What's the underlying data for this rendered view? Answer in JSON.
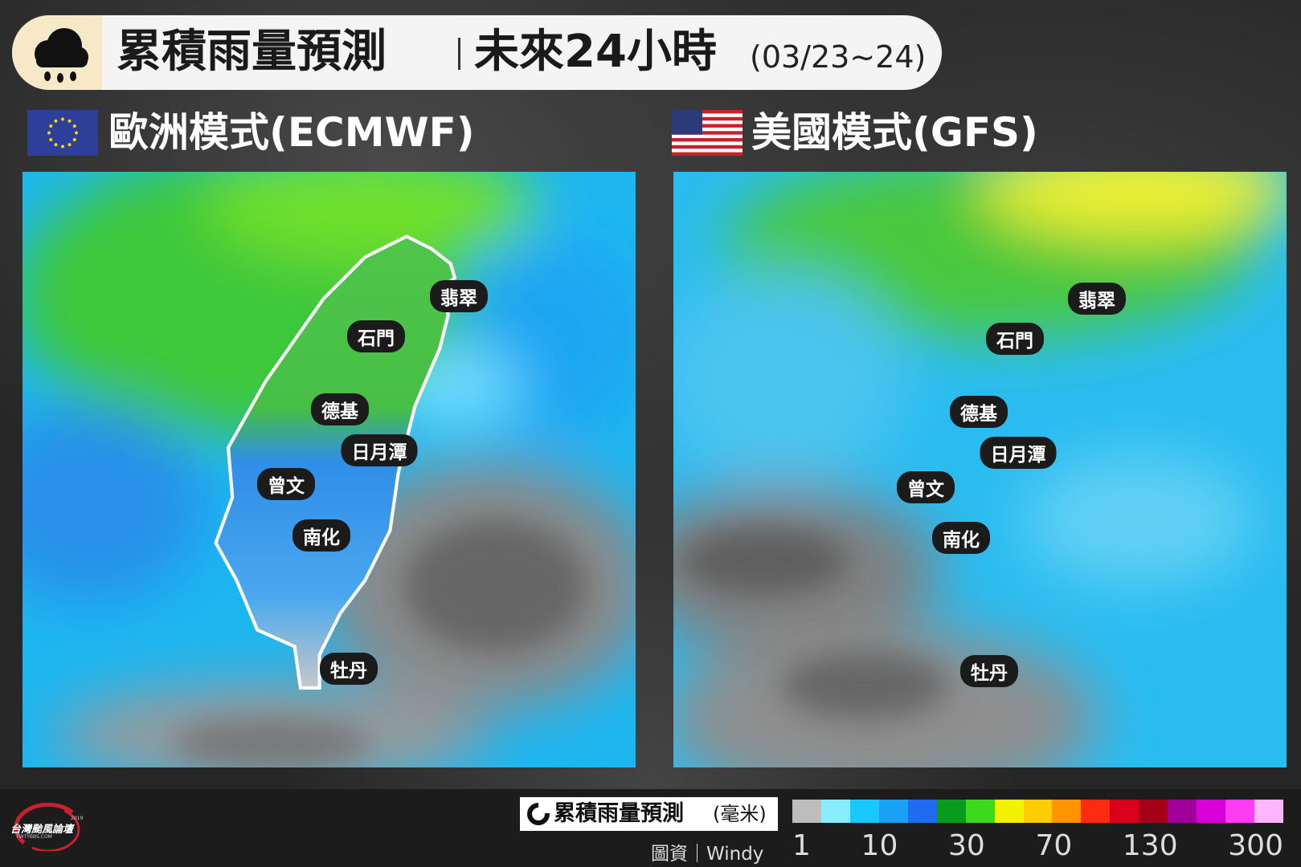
{
  "header": {
    "title": "累積雨量預測",
    "subtitle": "未來24小時",
    "date": "(03/23~24)"
  },
  "panels": [
    {
      "name": "歐洲模式(ECMWF)",
      "places": [
        "翡翠",
        "石門",
        "德基",
        "日月潭",
        "曾文",
        "南化",
        "牡丹"
      ]
    },
    {
      "name": "美國模式(GFS)",
      "places": [
        "翡翠",
        "石門",
        "德基",
        "日月潭",
        "曾文",
        "南化",
        "牡丹"
      ]
    }
  ],
  "legend": {
    "title": "累積雨量預測",
    "unit": "(毫米)",
    "ticks": [
      1,
      10,
      30,
      70,
      130,
      300
    ],
    "colors": [
      "#bdbdbd",
      "#86eeff",
      "#19c8ff",
      "#1aa0f5",
      "#1f6cf0",
      "#0a9a1e",
      "#3ed81c",
      "#f2f200",
      "#ffcc00",
      "#ff9400",
      "#ff2a10",
      "#d8001a",
      "#a40018",
      "#a0009c",
      "#d800d8",
      "#ff3cf2",
      "#ffb6ff"
    ]
  },
  "source": "圖資｜Windy",
  "logo": "台灣颱風論壇",
  "logo_site": "TWTYBBS.COM",
  "logo_year": "2019"
}
